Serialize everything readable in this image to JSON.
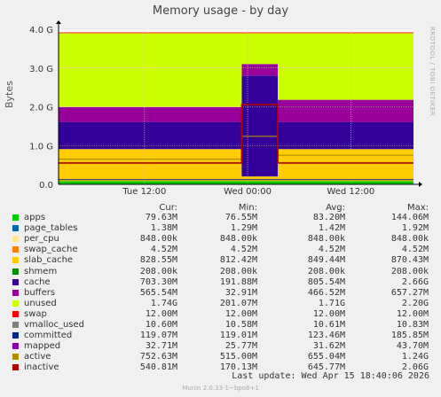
{
  "title": "Memory usage - by day",
  "side_text": "RRDTOOL / TOBI OETIKER",
  "footer": "Munin 2.0.33-1~bpo8+1",
  "last_update": "Last update:  Wed Apr 15 18:40:06 2026",
  "legend_headers": {
    "cur": "Cur:",
    "min": "Min:",
    "avg": "Avg:",
    "max": "Max:"
  },
  "legend": [
    {
      "name": "apps",
      "color": "#00cc00",
      "cur": "79.63M",
      "min": "76.55M",
      "avg": "83.20M",
      "max": "144.06M"
    },
    {
      "name": "page_tables",
      "color": "#0066b3",
      "cur": "1.38M",
      "min": "1.29M",
      "avg": "1.42M",
      "max": "1.92M"
    },
    {
      "name": "per_cpu",
      "color": "#ffe68f",
      "cur": "848.00k",
      "min": "848.00k",
      "avg": "848.00k",
      "max": "848.00k"
    },
    {
      "name": "swap_cache",
      "color": "#ff8000",
      "cur": "4.52M",
      "min": "4.52M",
      "avg": "4.52M",
      "max": "4.52M"
    },
    {
      "name": "slab_cache",
      "color": "#ffcc00",
      "cur": "828.55M",
      "min": "812.42M",
      "avg": "849.44M",
      "max": "870.43M"
    },
    {
      "name": "shmem",
      "color": "#008f00",
      "cur": "208.00k",
      "min": "208.00k",
      "avg": "208.00k",
      "max": "208.00k"
    },
    {
      "name": "cache",
      "color": "#330099",
      "cur": "703.30M",
      "min": "191.88M",
      "avg": "805.54M",
      "max": "2.66G"
    },
    {
      "name": "buffers",
      "color": "#990099",
      "cur": "565.54M",
      "min": "32.91M",
      "avg": "466.52M",
      "max": "657.27M"
    },
    {
      "name": "unused",
      "color": "#ccff00",
      "cur": "1.74G",
      "min": "201.07M",
      "avg": "1.71G",
      "max": "2.20G"
    },
    {
      "name": "swap",
      "color": "#ff0000",
      "cur": "12.00M",
      "min": "12.00M",
      "avg": "12.00M",
      "max": "12.00M"
    },
    {
      "name": "vmalloc_used",
      "color": "#808080",
      "cur": "10.60M",
      "min": "10.58M",
      "avg": "10.61M",
      "max": "10.83M"
    },
    {
      "name": "committed",
      "color": "#00248f",
      "cur": "119.07M",
      "min": "119.01M",
      "avg": "123.46M",
      "max": "185.85M"
    },
    {
      "name": "mapped",
      "color": "#8f00b3",
      "cur": "32.71M",
      "min": "25.77M",
      "avg": "31.62M",
      "max": "43.70M"
    },
    {
      "name": "active",
      "color": "#b38f00",
      "cur": "752.63M",
      "min": "515.00M",
      "avg": "655.04M",
      "max": "1.24G"
    },
    {
      "name": "inactive",
      "color": "#b30000",
      "cur": "540.81M",
      "min": "170.13M",
      "avg": "645.77M",
      "max": "2.06G"
    }
  ],
  "chart_data": {
    "type": "area",
    "ylabel": "Bytes",
    "ylim": [
      0,
      4.0
    ],
    "y_unit": "G",
    "y_ticks": [
      "0.0",
      "1.0 G",
      "2.0 G",
      "3.0 G",
      "4.0 G"
    ],
    "x_ticks": [
      "Tue 12:00",
      "Wed 00:00",
      "Wed 12:00"
    ],
    "x_tick_hours": [
      12,
      24,
      36
    ],
    "x_range_hours": [
      2,
      43.3
    ],
    "spike_hours": [
      23.3,
      27.5
    ],
    "grid": true,
    "stacked_series_G": {
      "apps": 0.08,
      "slab_cache": 0.83,
      "cache_before": 0.7,
      "cache_spike": 2.6,
      "cache_after": 0.7,
      "buffers_before": 0.38,
      "buffers_after": 0.57,
      "total_memory": 3.9
    },
    "line_series_G": {
      "inactive_before": 0.55,
      "inactive_spike": 2.06,
      "inactive_after": 0.55,
      "active_before": 0.65,
      "active_spike": 1.24,
      "active_after": 0.75,
      "committed": 0.12
    },
    "colors": {
      "apps": "#00cc00",
      "shmem": "#008f00",
      "slab_cache": "#ffcc00",
      "cache": "#330099",
      "buffers": "#990099",
      "unused": "#ccff00",
      "swap": "#ff0000",
      "committed": "#00248f",
      "active": "#b38f00",
      "inactive": "#b30000"
    }
  }
}
